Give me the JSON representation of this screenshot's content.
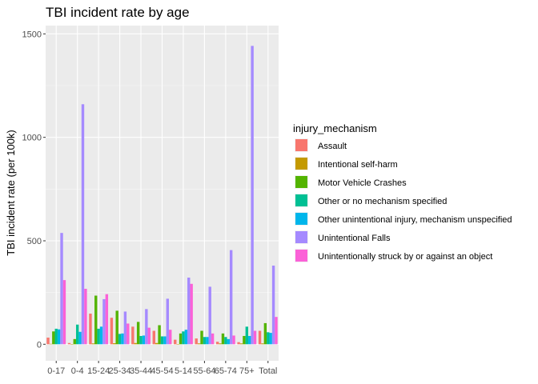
{
  "chart_data": {
    "type": "bar",
    "title": "TBI incident rate by age",
    "xlabel": "",
    "ylabel": "TBI incident rate (per 100k)",
    "ylim": [
      -80,
      1540
    ],
    "yticks": [
      0,
      500,
      1000,
      1500
    ],
    "grid": true,
    "legend_position": "right",
    "legend_title": "injury_mechanism",
    "categories": [
      "0-17",
      "0-4",
      "15-24",
      "25-34",
      "35-44",
      "45-54",
      "5-14",
      "55-64",
      "65-74",
      "75+",
      "Total"
    ],
    "series": [
      {
        "name": "Assault",
        "color": "#F8766D",
        "values": [
          32,
          6,
          148,
          128,
          85,
          65,
          22,
          28,
          12,
          10,
          65
        ]
      },
      {
        "name": "Intentional self-harm",
        "color": "#C49A00",
        "values": [
          2,
          1,
          4,
          5,
          6,
          6,
          1,
          4,
          4,
          4,
          4
        ]
      },
      {
        "name": "Motor Vehicle Crashes",
        "color": "#53B400",
        "values": [
          62,
          25,
          235,
          162,
          108,
          92,
          52,
          65,
          52,
          40,
          102
        ]
      },
      {
        "name": "Other or no mechanism specified",
        "color": "#00C094",
        "values": [
          75,
          95,
          75,
          50,
          40,
          38,
          62,
          35,
          35,
          85,
          58
        ]
      },
      {
        "name": "Other unintentional injury, mechanism unspecified",
        "color": "#00B6EB",
        "values": [
          72,
          60,
          85,
          52,
          42,
          38,
          70,
          35,
          25,
          40,
          55
        ]
      },
      {
        "name": "Unintentional Falls",
        "color": "#A58AFF",
        "values": [
          538,
          1160,
          218,
          158,
          170,
          220,
          322,
          278,
          455,
          1442,
          380
        ]
      },
      {
        "name": "Unintentionally struck by or against an object",
        "color": "#FB61D7",
        "values": [
          310,
          268,
          242,
          100,
          80,
          70,
          292,
          52,
          42,
          65,
          132
        ]
      }
    ]
  }
}
